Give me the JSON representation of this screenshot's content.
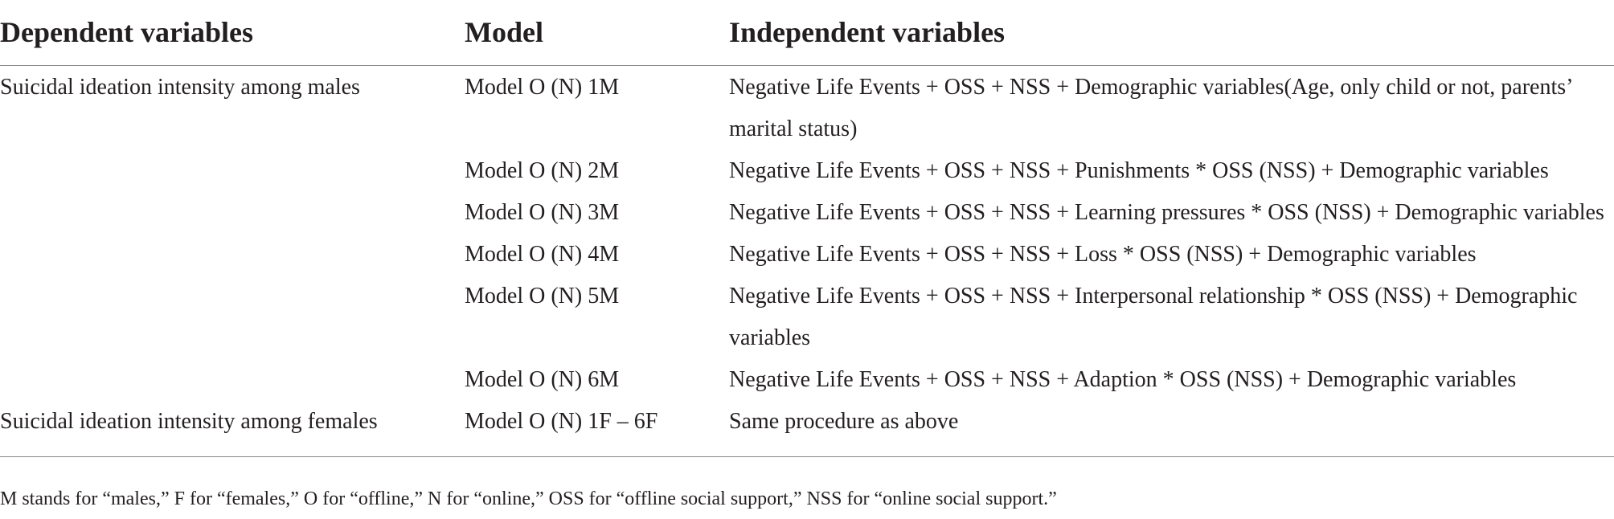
{
  "table": {
    "headers": {
      "dependent": "Dependent variables",
      "model": "Model",
      "independent": "Independent variables"
    },
    "rows": [
      {
        "dependent": "Suicidal ideation intensity among males",
        "model": "Model O (N) 1M",
        "independent": "Negative Life Events + OSS + NSS + Demographic variables(Age, only child or not, parents’ marital status)"
      },
      {
        "dependent": "",
        "model": "Model O (N) 2M",
        "independent": "Negative Life Events + OSS + NSS + Punishments * OSS (NSS) + Demographic variables"
      },
      {
        "dependent": "",
        "model": "Model O (N) 3M",
        "independent": "Negative Life Events + OSS + NSS + Learning pressures * OSS (NSS) + Demographic variables"
      },
      {
        "dependent": "",
        "model": "Model O (N) 4M",
        "independent": "Negative Life Events + OSS + NSS + Loss * OSS (NSS) + Demographic variables"
      },
      {
        "dependent": "",
        "model": "Model O (N) 5M",
        "independent": "Negative Life Events + OSS + NSS + Interpersonal relationship * OSS (NSS) + Demographic variables"
      },
      {
        "dependent": "",
        "model": "Model O (N) 6M",
        "independent": "Negative Life Events + OSS + NSS + Adaption * OSS (NSS) + Demographic variables"
      },
      {
        "dependent": "Suicidal ideation intensity among females",
        "model": "Model O (N) 1F – 6F",
        "independent": "Same procedure as above"
      }
    ]
  },
  "footnote": "M stands for “males,” F for “females,” O for “offline,” N for “online,” OSS for “offline social support,” NSS for “online social support.”"
}
